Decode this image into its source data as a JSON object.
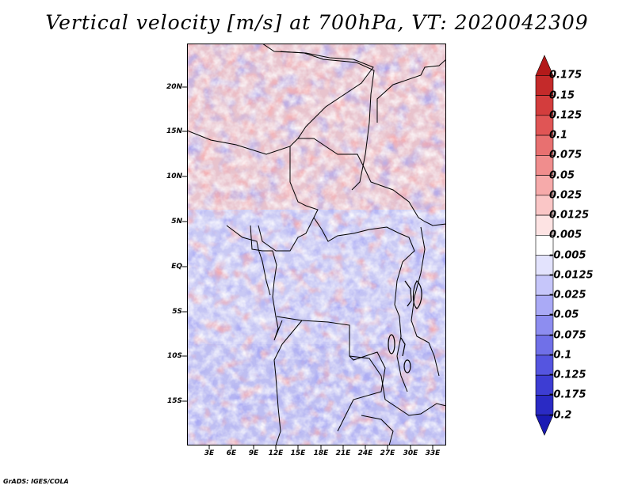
{
  "title": "Vertical velocity [m/s] at 700hPa, VT: 2020042309",
  "credit": "GrADS: IGES/COLA",
  "map": {
    "lat_labels": [
      "20N",
      "15N",
      "10N",
      "5N",
      "EQ",
      "5S",
      "10S",
      "15S"
    ],
    "lon_labels": [
      "3E",
      "6E",
      "9E",
      "12E",
      "15E",
      "18E",
      "21E",
      "24E",
      "27E",
      "30E",
      "33E"
    ]
  },
  "colorbar": {
    "labels": [
      "0.175",
      "0.15",
      "0.125",
      "0.1",
      "0.075",
      "0.05",
      "0.025",
      "0.0125",
      "0.005",
      "-0.005",
      "-0.0125",
      "-0.025",
      "-0.05",
      "-0.075",
      "-0.1",
      "-0.125",
      "-0.175",
      "-0.2"
    ],
    "colors": [
      "#b31a1a",
      "#c42a2a",
      "#d33d3d",
      "#e05555",
      "#e87070",
      "#f08d8d",
      "#f6aaaa",
      "#fac6c6",
      "#fde3e3",
      "#ffffff",
      "#e3e3fd",
      "#c6c6fa",
      "#aaaaf6",
      "#8d8df0",
      "#7070e8",
      "#5555e0",
      "#3d3dd3",
      "#2a2ac4",
      "#1a1ab3"
    ]
  }
}
